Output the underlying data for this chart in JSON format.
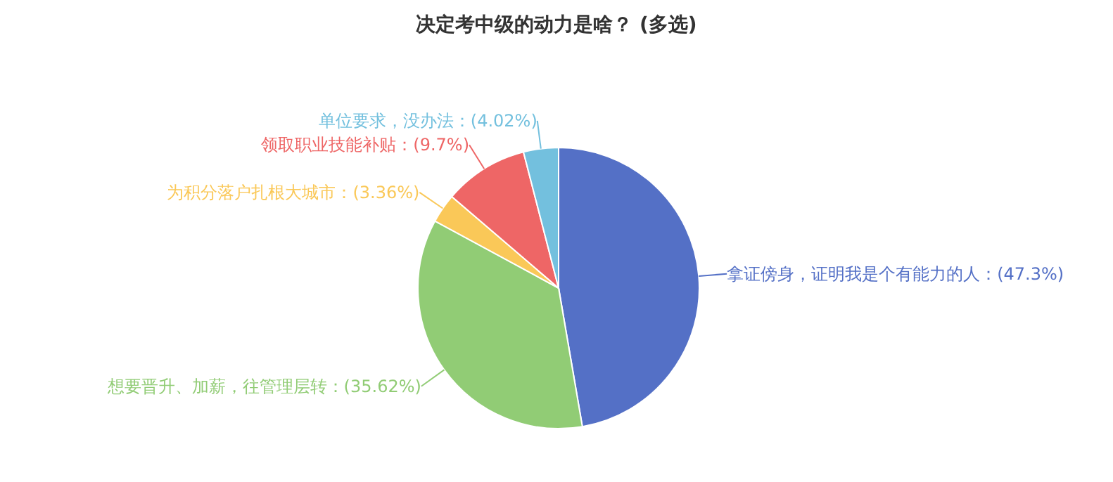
{
  "chart_data": {
    "type": "pie",
    "title": "决定考中级的动力是啥？ (多选)",
    "categories": [
      "拿证傍身，证明我是个有能力的人",
      "想要晋升、加薪，往管理层转",
      "为积分落户扎根大城市",
      "领取职业技能补贴",
      "单位要求，没办法"
    ],
    "values": [
      47.3,
      35.62,
      3.36,
      9.7,
      4.02
    ],
    "value_labels": [
      "(47.3%)",
      "(35.62%)",
      "(3.36%)",
      "(9.7%)",
      "(4.02%)"
    ],
    "colors": [
      "#5470c6",
      "#91cc75",
      "#fac858",
      "#ee6666",
      "#73c0de"
    ],
    "legend": false
  }
}
